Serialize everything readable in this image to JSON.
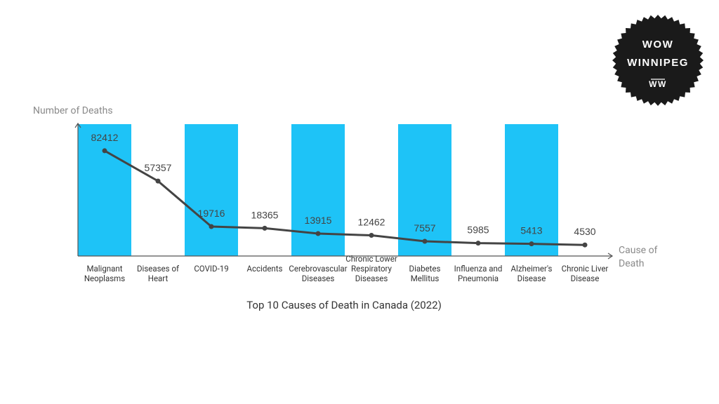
{
  "chart_data": {
    "type": "line",
    "title": "Top 10 Causes of Death in Canada (2022)",
    "y_axis_label": "Number of Deaths",
    "x_axis_label": "Cause of Death",
    "categories": [
      "Malignant Neoplasms",
      "Diseases of Heart",
      "COVID-19",
      "Accidents",
      "Cerebrovascular Diseases",
      "Chronic Lower Respiratory Diseases",
      "Diabetes Mellitus",
      "Influenza and Pneumonia",
      "Alzheimer's Disease",
      "Chronic Liver Disease"
    ],
    "values": [
      82412,
      57357,
      19716,
      18365,
      13915,
      12462,
      7557,
      5985,
      5413,
      4530
    ],
    "color": "#444444",
    "band_color": "#1ec3f7",
    "ylim": [
      0,
      105000
    ]
  },
  "logo": {
    "lines": [
      "WOW",
      "WINNIPEG",
      "WW"
    ]
  }
}
